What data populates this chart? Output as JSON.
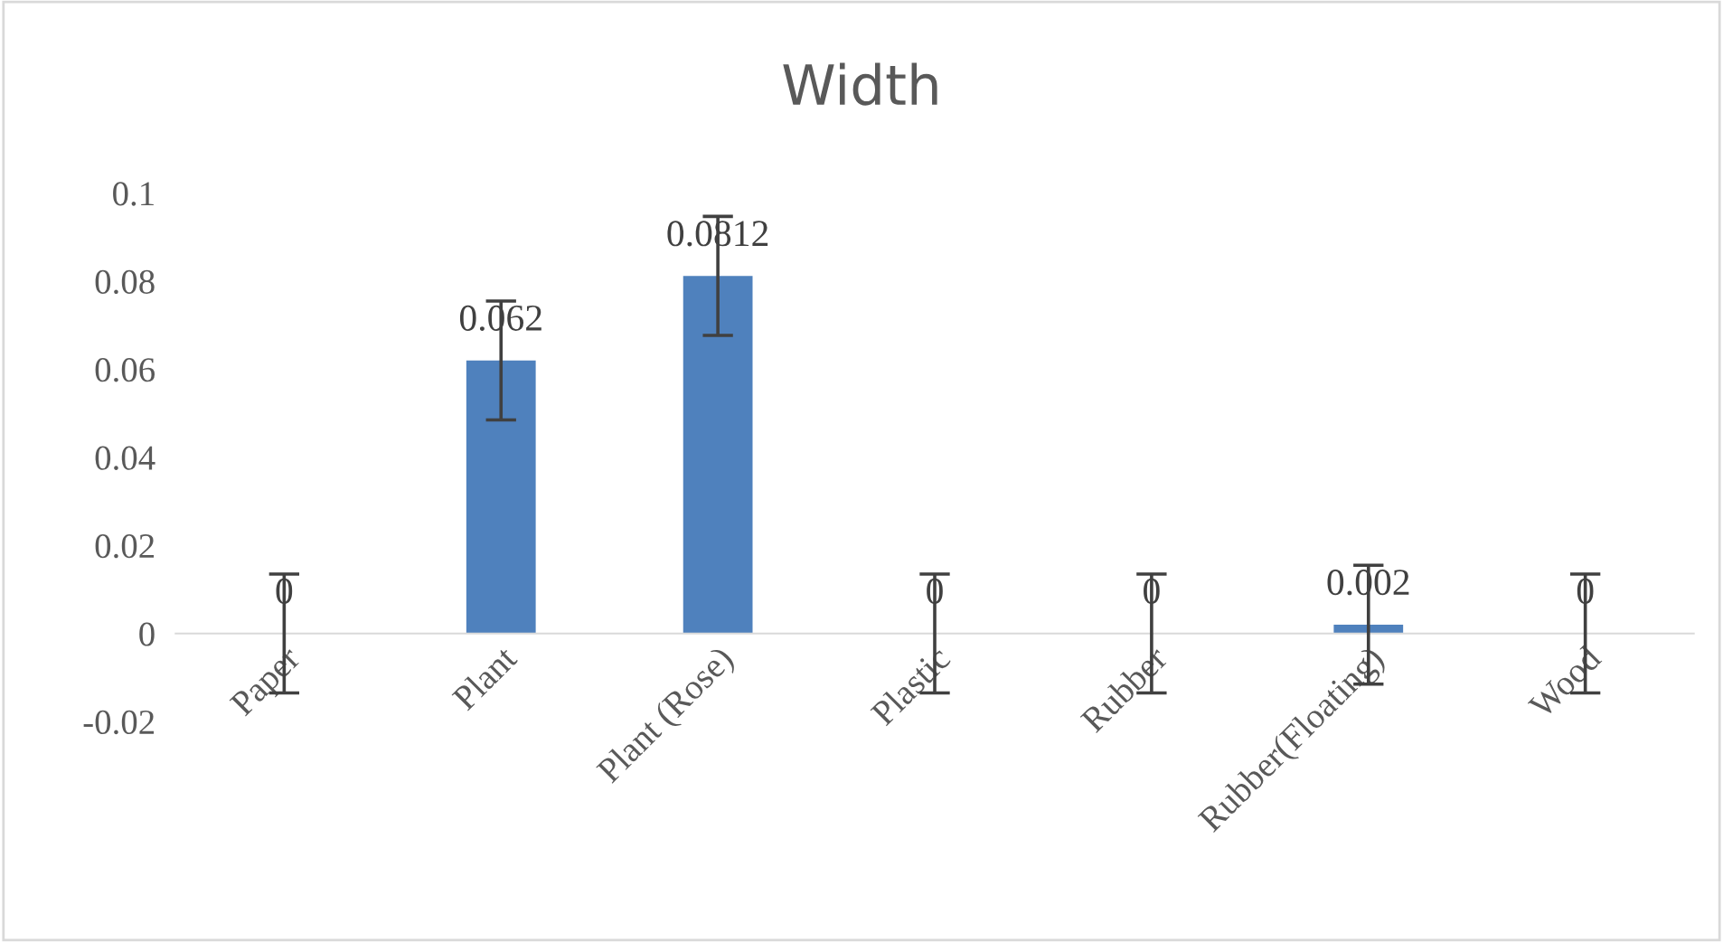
{
  "chart_data": {
    "type": "bar",
    "title": "Width",
    "categories": [
      "Paper",
      "Plant",
      "Plant (Rose)",
      "Plastic",
      "Rubber",
      "Rubber(Floating)",
      "Wood"
    ],
    "values": [
      0,
      0.062,
      0.0812,
      0,
      0,
      0.002,
      0
    ],
    "errors": [
      0.0135,
      0.0135,
      0.0135,
      0.0135,
      0.0135,
      0.0135,
      0.0135
    ],
    "color": "#4f81bd",
    "ylim": [
      -0.02,
      0.1
    ],
    "yticks": [
      -0.02,
      0,
      0.02,
      0.04,
      0.06,
      0.08,
      0.1
    ],
    "data_labels": true,
    "grid": false,
    "legend": false
  }
}
